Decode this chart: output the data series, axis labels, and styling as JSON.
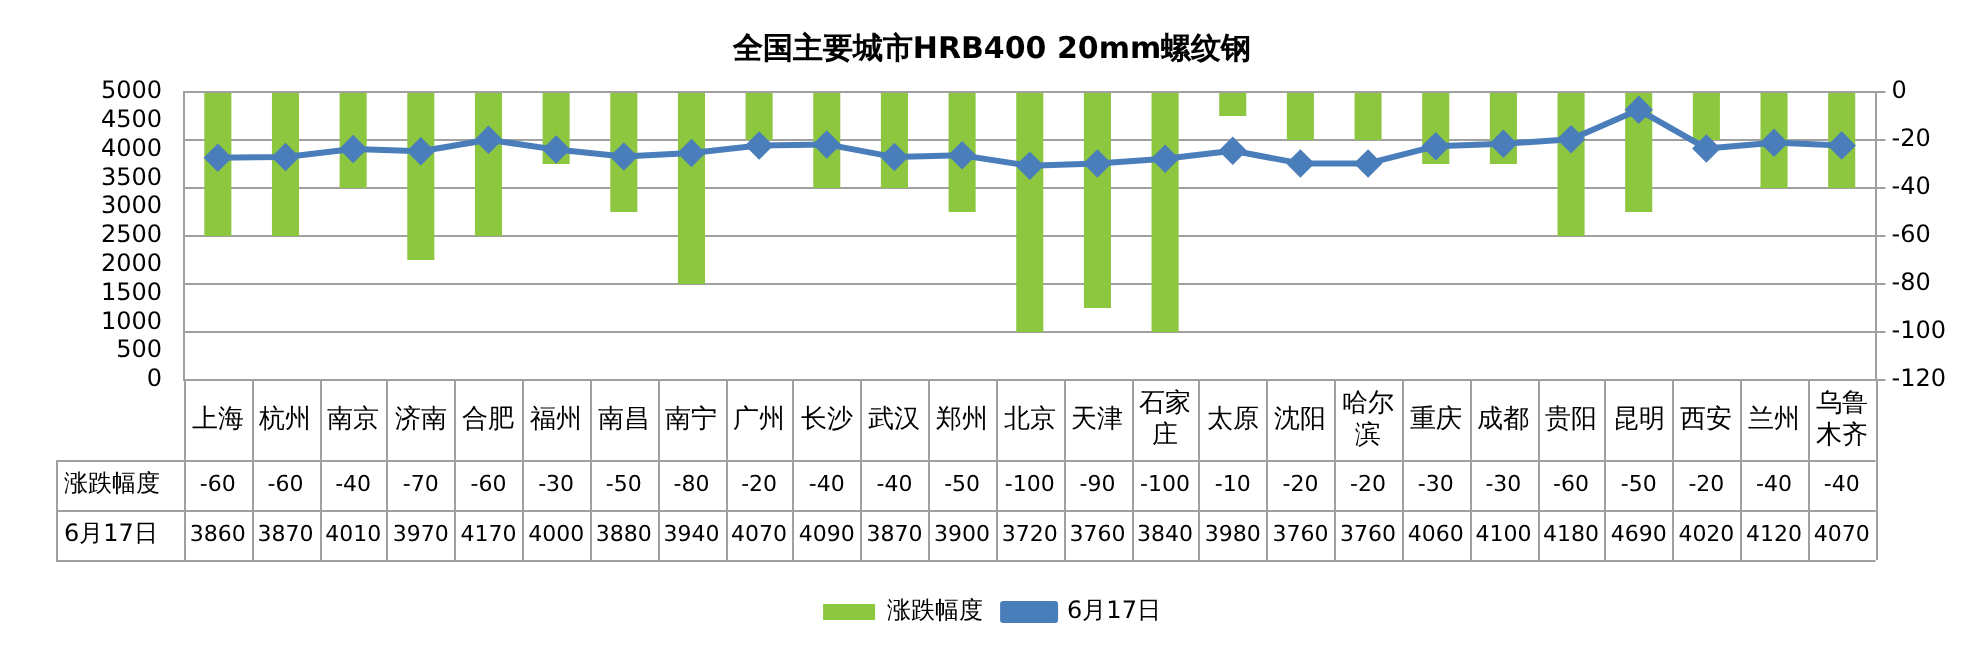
{
  "chart_data": {
    "type": "bar",
    "title": "全国主要城市HRB400 20mm螺纹钢",
    "categories": [
      "上海",
      "杭州",
      "南京",
      "济南",
      "合肥",
      "福州",
      "南昌",
      "南宁",
      "广州",
      "长沙",
      "武汉",
      "郑州",
      "北京",
      "天津",
      "石家庄",
      "太原",
      "沈阳",
      "哈尔滨",
      "重庆",
      "成都",
      "贵阳",
      "昆明",
      "西安",
      "兰州",
      "乌鲁木齐"
    ],
    "series": [
      {
        "name": "涨跌幅度",
        "axis": "y2",
        "color": "#8dc63f",
        "values": [
          -60,
          -60,
          -40,
          -70,
          -60,
          -30,
          -50,
          -80,
          -20,
          -40,
          -40,
          -50,
          -100,
          -90,
          -100,
          -10,
          -20,
          -20,
          -30,
          -30,
          -60,
          -50,
          -20,
          -40,
          -40
        ]
      },
      {
        "name": "6月17日",
        "type": "line",
        "axis": "y",
        "color": "#4a7ebb",
        "marker": "diamond",
        "values": [
          3860,
          3870,
          4010,
          3970,
          4170,
          4000,
          3880,
          3940,
          4070,
          4090,
          3870,
          3900,
          3720,
          3760,
          3840,
          3980,
          3760,
          3760,
          4060,
          4100,
          4180,
          4690,
          4020,
          4120,
          4070
        ]
      }
    ],
    "ylim": [
      0,
      5000
    ],
    "yticks": [
      0,
      500,
      1000,
      1500,
      2000,
      2500,
      3000,
      3500,
      4000,
      4500,
      5000
    ],
    "y2lim": [
      -120,
      0
    ],
    "y2ticks": [
      -120,
      -100,
      -80,
      -60,
      -40,
      -20,
      0
    ],
    "grid": "y2",
    "legend": "bottom",
    "data_labels": true
  }
}
